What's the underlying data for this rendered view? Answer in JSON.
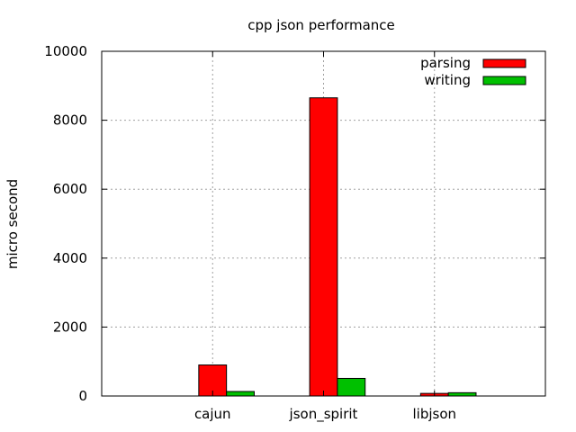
{
  "chart_data": {
    "type": "bar",
    "title": "cpp json performance",
    "xlabel": "",
    "ylabel": "micro second",
    "ylim": [
      0,
      10000
    ],
    "yticks": [
      0,
      2000,
      4000,
      6000,
      8000,
      10000
    ],
    "categories": [
      "cajun",
      "json_spirit",
      "libjson"
    ],
    "xlim": [
      -1,
      3
    ],
    "grid": true,
    "legend_position": "top-right",
    "series": [
      {
        "name": "parsing",
        "color": "#ff0000",
        "values": [
          900,
          8650,
          75
        ]
      },
      {
        "name": "writing",
        "color": "#00c000",
        "values": [
          130,
          510,
          95
        ]
      }
    ]
  }
}
